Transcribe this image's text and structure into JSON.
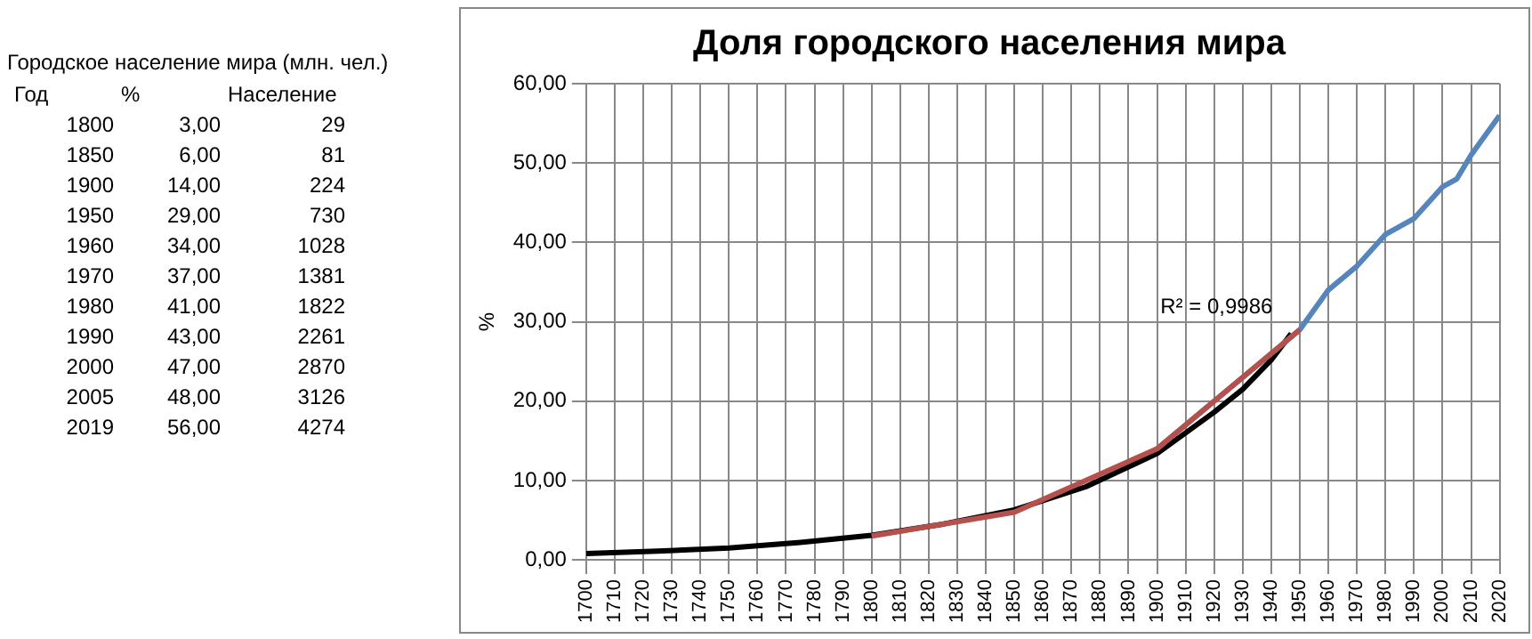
{
  "chart_data": [
    {
      "type": "other",
      "title": "Городское население мира (млн. чел.)",
      "annotations": [
        "Год",
        "%",
        "Население",
        "1800",
        "3,00",
        "29",
        "1850",
        "6,00",
        "81",
        "1900",
        "14,00",
        "224",
        "1950",
        "29,00",
        "730",
        "1960",
        "34,00",
        "1028",
        "1970",
        "37,00",
        "1381",
        "1980",
        "41,00",
        "1822",
        "1990",
        "43,00",
        "2261",
        "2000",
        "47,00",
        "2870",
        "2005",
        "48,00",
        "3126",
        "2019",
        "56,00",
        "4274"
      ]
    },
    {
      "type": "line",
      "title": "Доля городского населения мира",
      "ylabel": "%",
      "series": [
        {
          "color": "#000000",
          "x": [
            1700,
            1725,
            1750,
            1775,
            1800,
            1825,
            1850,
            1875,
            1900,
            1920,
            1930,
            1940,
            1947
          ],
          "values": [
            0.8,
            1.1,
            1.5,
            2.2,
            3.1,
            4.5,
            6.3,
            9.2,
            13.4,
            18.6,
            21.5,
            25.2,
            28.5
          ]
        },
        {
          "color": "#5685bd",
          "x": [
            1900,
            1950,
            1960,
            1970,
            1980,
            1990,
            2000,
            2005,
            2010,
            2020
          ],
          "values": [
            14,
            29,
            34,
            37,
            41,
            43,
            47,
            48,
            51,
            56
          ]
        },
        {
          "color": "#b5504d",
          "x": [
            1800,
            1850,
            1900,
            1950
          ],
          "values": [
            3,
            6,
            14,
            29
          ]
        }
      ],
      "xlim": [
        1700,
        2020
      ],
      "xticks": [
        1700,
        1710,
        1720,
        1730,
        1740,
        1750,
        1760,
        1770,
        1780,
        1790,
        1800,
        1810,
        1820,
        1830,
        1840,
        1850,
        1860,
        1870,
        1880,
        1890,
        1900,
        1910,
        1920,
        1930,
        1940,
        1950,
        1960,
        1970,
        1980,
        1990,
        2000,
        2010,
        2020
      ],
      "ylim": [
        0,
        60
      ],
      "yticks": [
        {
          "value": 0,
          "label": "0,00"
        },
        {
          "value": 10,
          "label": "10,00"
        },
        {
          "value": 20,
          "label": "20,00"
        },
        {
          "value": 30,
          "label": "30,00"
        },
        {
          "value": 40,
          "label": "40,00"
        },
        {
          "value": 50,
          "label": "50,00"
        },
        {
          "value": 60,
          "label": "60,00"
        }
      ],
      "grid": true,
      "legend": false,
      "annotations": [
        "R² = 0,9986"
      ]
    }
  ]
}
